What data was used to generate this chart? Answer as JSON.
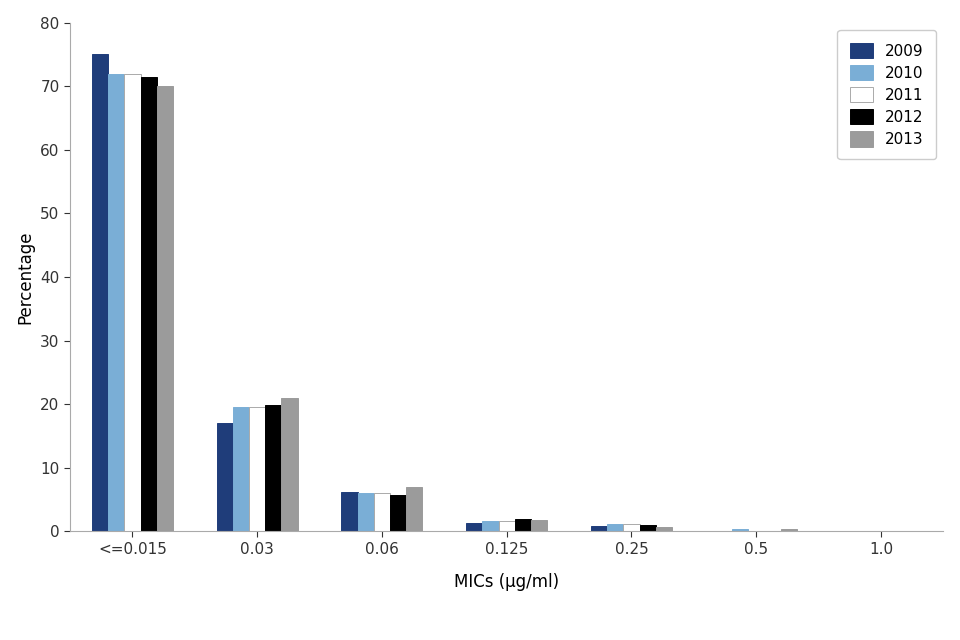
{
  "categories": [
    "<=0.015",
    "0.03",
    "0.06",
    "0.125",
    "0.25",
    "0.5",
    "1.0"
  ],
  "years": [
    "2009",
    "2010",
    "2011",
    "2012",
    "2013"
  ],
  "colors": [
    "#1f3d7a",
    "#7aaed6",
    "#ffffff",
    "#000000",
    "#9b9b9b"
  ],
  "bar_edgecolors": [
    "#1f3d7a",
    "#7aaed6",
    "#aaaaaa",
    "#000000",
    "#9b9b9b"
  ],
  "values": {
    "2009": [
      75.0,
      17.0,
      6.2,
      1.3,
      0.9,
      0.0,
      0.0
    ],
    "2010": [
      72.0,
      19.5,
      6.0,
      1.6,
      1.1,
      0.3,
      0.0
    ],
    "2011": [
      72.0,
      19.5,
      6.0,
      1.6,
      1.1,
      0.0,
      0.0
    ],
    "2012": [
      71.5,
      19.8,
      5.7,
      2.0,
      1.0,
      0.0,
      0.0
    ],
    "2013": [
      70.0,
      21.0,
      7.0,
      1.8,
      0.7,
      0.3,
      0.0
    ]
  },
  "xlabel": "MICs (μg/ml)",
  "ylabel": "Percentage",
  "ylim": [
    0,
    80
  ],
  "yticks": [
    0,
    10,
    20,
    30,
    40,
    50,
    60,
    70,
    80
  ],
  "bar_width": 0.13,
  "figsize": [
    9.6,
    6.4
  ],
  "dpi": 100,
  "bg_color": "#ffffff",
  "spine_color": "#aaaaaa",
  "tick_fontsize": 11,
  "label_fontsize": 12,
  "legend_fontsize": 11
}
